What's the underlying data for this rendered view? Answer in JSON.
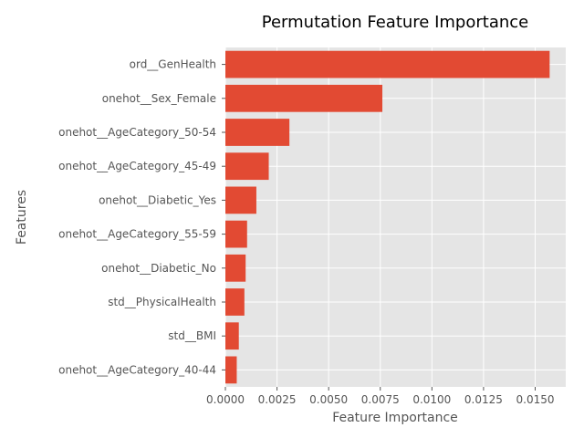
{
  "chart_data": {
    "type": "bar",
    "orientation": "horizontal",
    "title": "Permutation Feature Importance",
    "xlabel": "Feature Importance",
    "ylabel": "Features",
    "categories": [
      "ord__GenHealth",
      "onehot__Sex_Female",
      "onehot__AgeCategory_50-54",
      "onehot__AgeCategory_45-49",
      "onehot__Diabetic_Yes",
      "onehot__AgeCategory_55-59",
      "onehot__Diabetic_No",
      "std__PhysicalHealth",
      "std__BMI",
      "onehot__AgeCategory_40-44"
    ],
    "values": [
      0.0157,
      0.0076,
      0.0031,
      0.0021,
      0.0015,
      0.00105,
      0.00098,
      0.00092,
      0.00065,
      0.00055
    ],
    "xlim": [
      0,
      0.01648
    ],
    "xticks": [
      0,
      0.0025,
      0.005,
      0.0075,
      0.01,
      0.0125,
      0.015
    ],
    "xtick_labels": [
      "0.0000",
      "0.0025",
      "0.0050",
      "0.0075",
      "0.0100",
      "0.0125",
      "0.0150"
    ],
    "grid": true,
    "colors": {
      "bar": "#E24A33",
      "plot_background": "#E5E5E5",
      "grid": "#FFFFFF",
      "text": "#555555"
    }
  }
}
